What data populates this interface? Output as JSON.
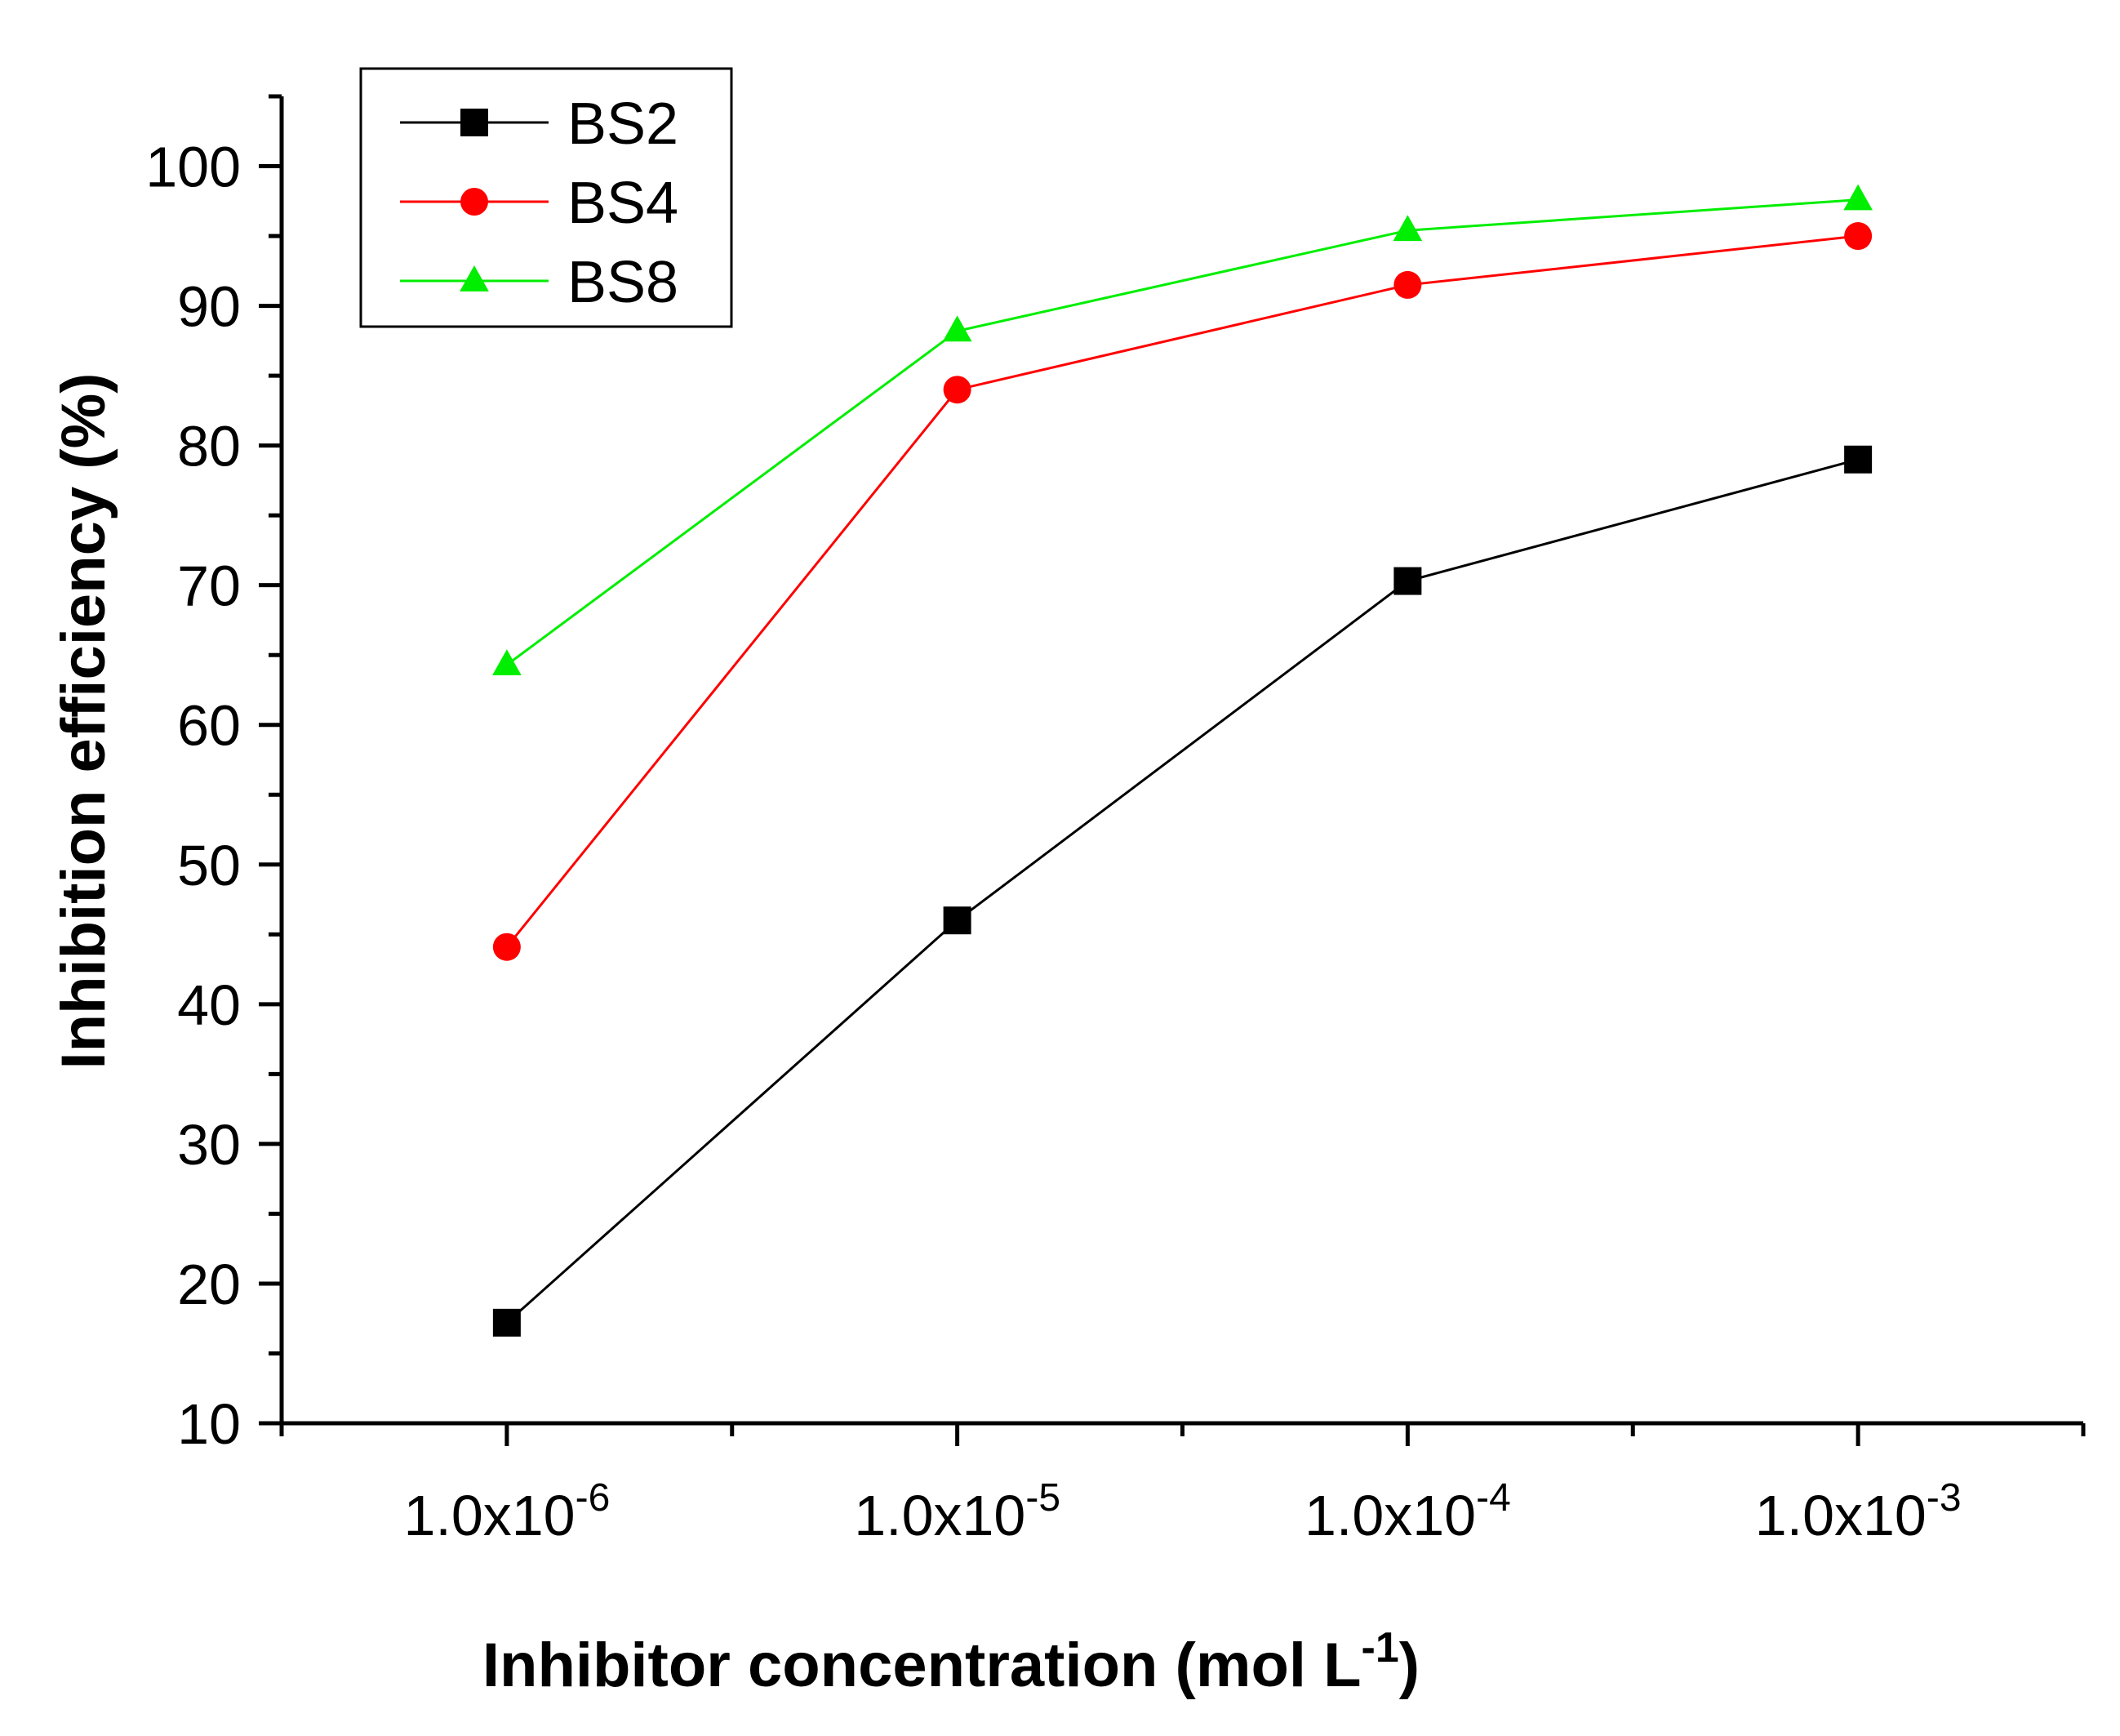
{
  "chart_data": {
    "type": "line",
    "title": "",
    "xlabel": "Inhibitor concentration (mol L",
    "xlabel_superscript": "-1",
    "xlabel_suffix": ")",
    "ylabel": "Inhibition efficiency (%)",
    "ylim": [
      10,
      105
    ],
    "yticks": [
      10,
      20,
      30,
      40,
      50,
      60,
      70,
      80,
      90,
      100
    ],
    "xlim": [
      -6.5,
      -2.5
    ],
    "xscale": "log10",
    "x": [
      -6,
      -5,
      -4,
      -3
    ],
    "xtick_labels": [
      {
        "base": "1.0x10",
        "exp": "-6"
      },
      {
        "base": "1.0x10",
        "exp": "-5"
      },
      {
        "base": "1.0x10",
        "exp": "-4"
      },
      {
        "base": "1.0x10",
        "exp": "-3"
      }
    ],
    "grid": false,
    "legend_position": "top-left",
    "series": [
      {
        "name": "BS2",
        "color": "#000000",
        "marker": "square",
        "values": [
          17.2,
          46.0,
          70.3,
          79.0
        ]
      },
      {
        "name": "BS4",
        "color": "#ff0000",
        "marker": "circle",
        "values": [
          44.1,
          84.0,
          91.5,
          95.0
        ]
      },
      {
        "name": "BS8",
        "color": "#00ee00",
        "marker": "triangle",
        "values": [
          64.3,
          88.2,
          95.4,
          97.6
        ]
      }
    ]
  }
}
